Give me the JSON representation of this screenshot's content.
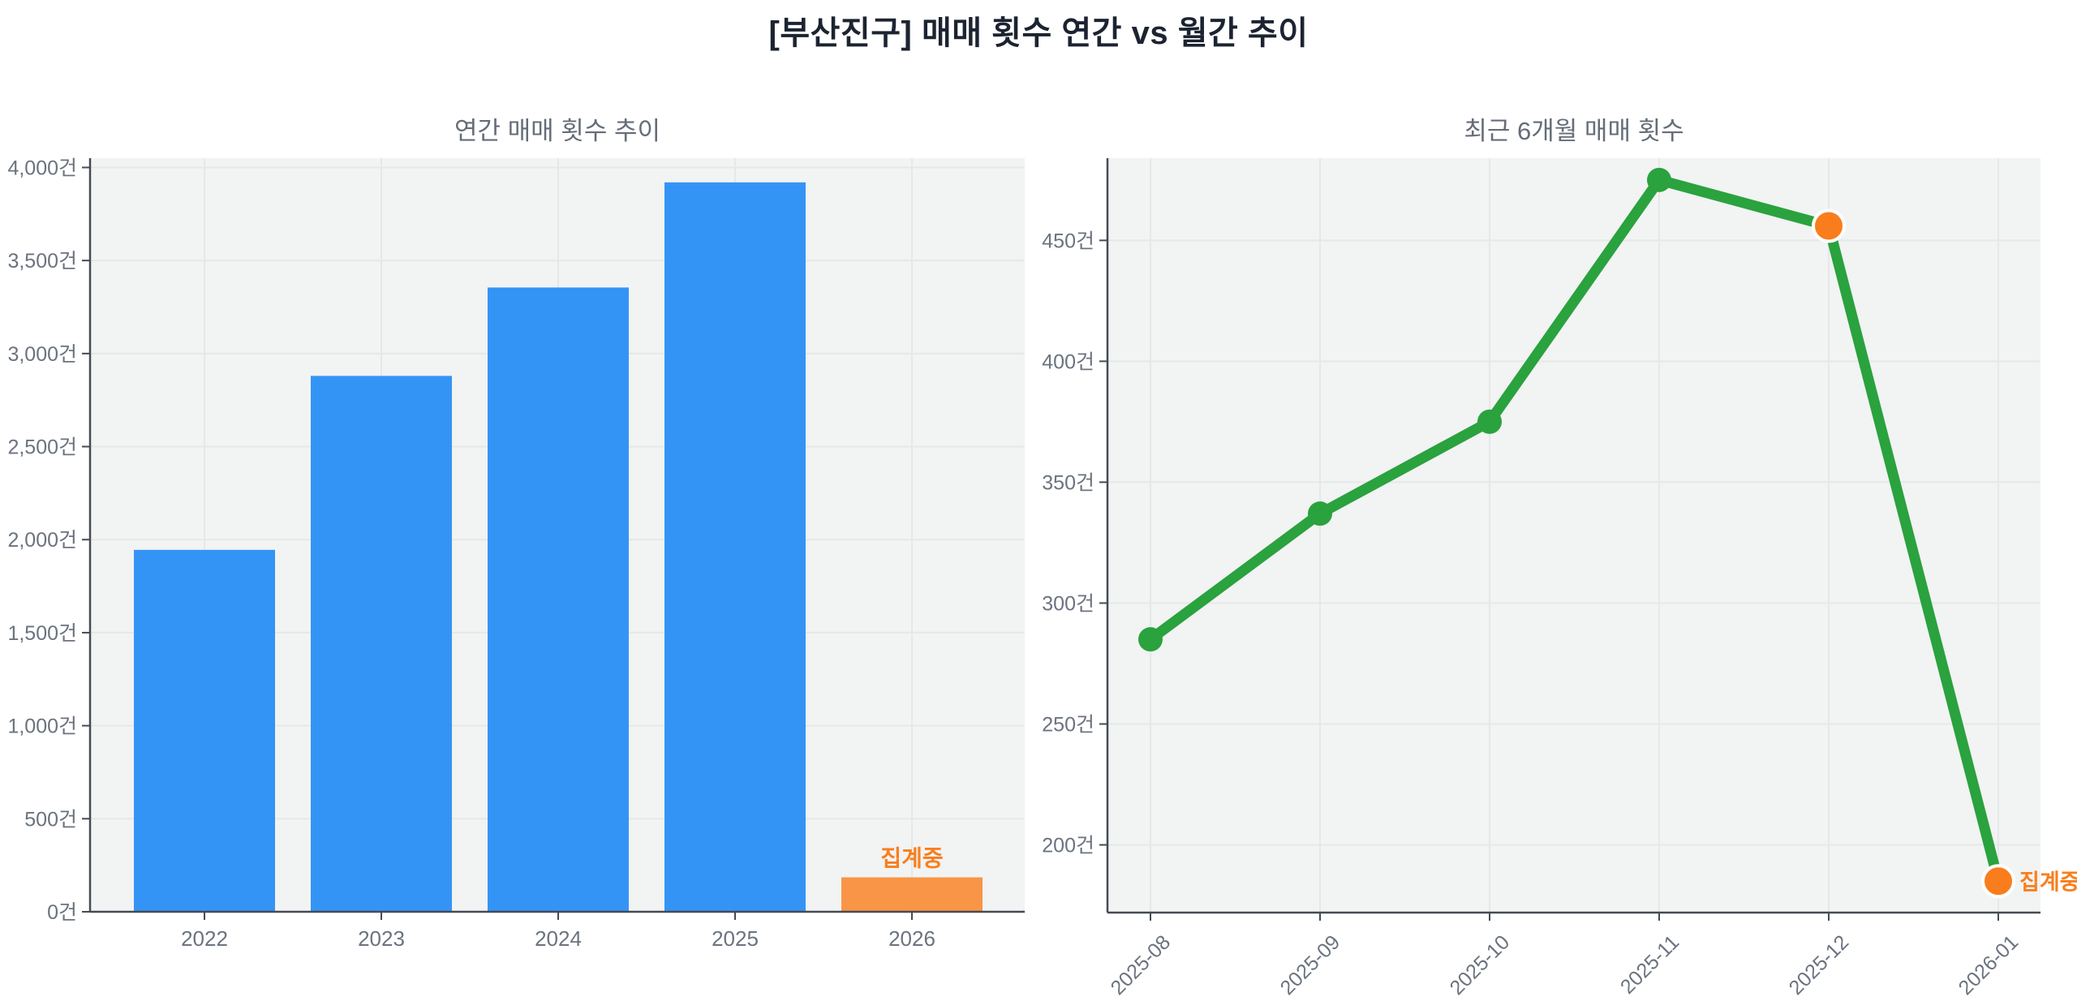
{
  "page": {
    "title": "[부산진구] 매매 횟수 연간 vs 월간 추이"
  },
  "colors": {
    "bar_blue": "#3494f6",
    "bar_orange": "#f89546",
    "marker_orange": "#f97d1c",
    "annotation_orange": "#f87f1e",
    "line_green": "#2aa23e",
    "plot_bg": "#f2f3f3",
    "grid": "#e6e8e8",
    "axis": "#454b54",
    "tick_label": "#6b737f",
    "subtitle": "#656d78",
    "title": "#1c2331"
  },
  "chart_data": [
    {
      "type": "bar",
      "title": "연간 매매 횟수 추이",
      "unit": "건",
      "categories": [
        "2022",
        "2023",
        "2024",
        "2025",
        "2026"
      ],
      "values": [
        1945,
        2880,
        3355,
        3920,
        185
      ],
      "bar_color_keys": [
        "bar_blue",
        "bar_blue",
        "bar_blue",
        "bar_blue",
        "bar_orange"
      ],
      "ylim": [
        0,
        4050
      ],
      "ytick_values": [
        0,
        500,
        1000,
        1500,
        2000,
        2500,
        3000,
        3500,
        4000
      ],
      "ytick_labels": [
        "0건",
        "500건",
        "1,000건",
        "1,500건",
        "2,000건",
        "2,500건",
        "3,000건",
        "3,500건",
        "4,000건"
      ],
      "grid": true,
      "legend": false,
      "annotations": [
        {
          "category_index": 4,
          "text": "집계중"
        }
      ]
    },
    {
      "type": "line",
      "title": "최근 6개월 매매 횟수",
      "unit": "건",
      "x": [
        "2025-08",
        "2025-09",
        "2025-10",
        "2025-11",
        "2025-12",
        "2026-01"
      ],
      "values": [
        285,
        337,
        375,
        475,
        456,
        185
      ],
      "marker_color_keys": [
        "line_green",
        "line_green",
        "line_green",
        "line_green",
        "marker_orange",
        "marker_orange"
      ],
      "highlight_indices": [
        4,
        5
      ],
      "ylim": [
        172,
        484
      ],
      "ytick_values": [
        200,
        250,
        300,
        350,
        400,
        450
      ],
      "ytick_labels": [
        "200건",
        "250건",
        "300건",
        "350건",
        "400건",
        "450건"
      ],
      "xtick_rotation_deg": -45,
      "grid": true,
      "legend": false,
      "annotations": [
        {
          "x_index": 5,
          "text": "집계중"
        }
      ]
    }
  ]
}
